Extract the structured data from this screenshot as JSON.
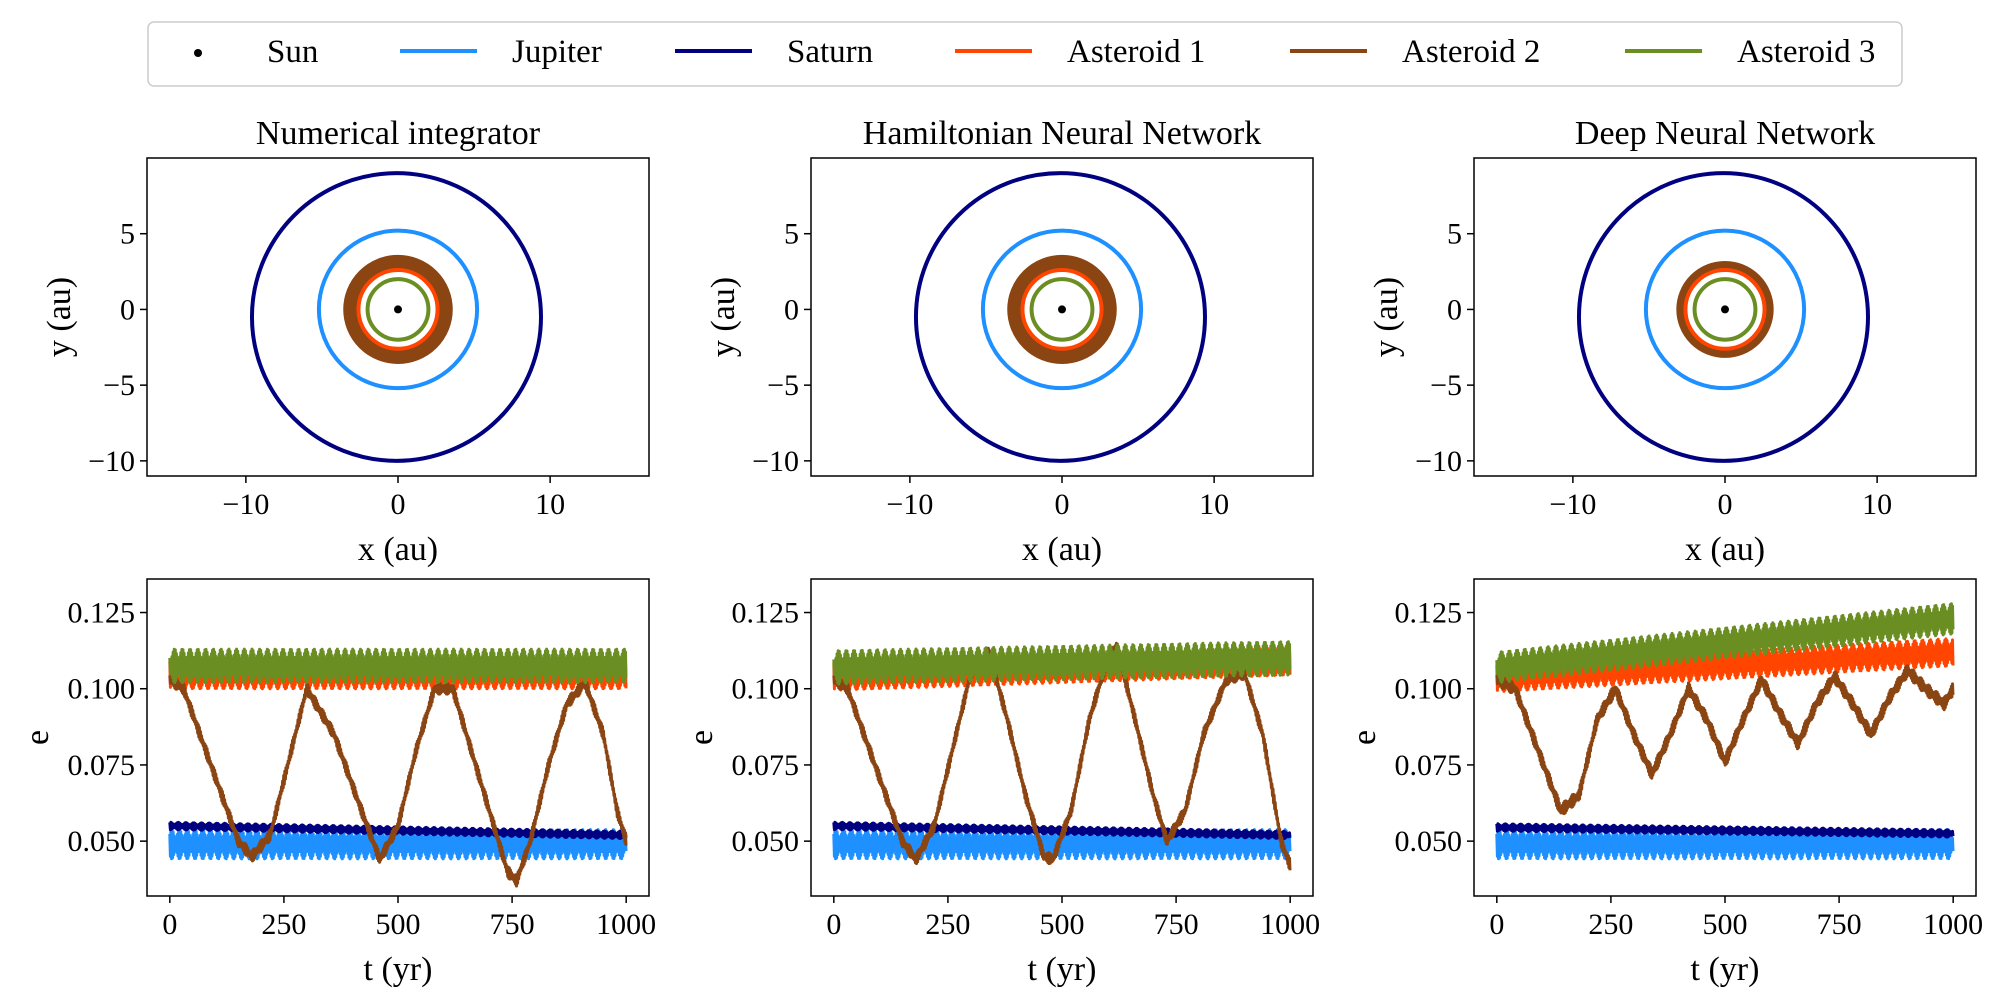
{
  "legend": {
    "placement": "top-center",
    "entries": [
      {
        "name": "Sun",
        "color": "#000000",
        "marker": "dot"
      },
      {
        "name": "Jupiter",
        "color": "#1e90ff",
        "marker": "line"
      },
      {
        "name": "Saturn",
        "color": "#000080",
        "marker": "line"
      },
      {
        "name": "Asteroid 1",
        "color": "#ff4500",
        "marker": "line"
      },
      {
        "name": "Asteroid 2",
        "color": "#8b4513",
        "marker": "line"
      },
      {
        "name": "Asteroid 3",
        "color": "#6b8e23",
        "marker": "line"
      }
    ]
  },
  "chart_data": [
    {
      "type": "line",
      "panel": "orbit",
      "title": "Numerical integrator",
      "xlabel": "x (au)",
      "ylabel": "y (au)",
      "xlim": [
        -16.5,
        16.5
      ],
      "ylim": [
        -11,
        10
      ],
      "xticks": [
        -10,
        0,
        10
      ],
      "yticks": [
        -10,
        -5,
        0,
        5
      ],
      "grid": false,
      "series": [
        {
          "name": "Saturn",
          "kind": "circle",
          "cx": -0.1,
          "cy": -0.5,
          "r": 9.5,
          "band": 0
        },
        {
          "name": "Jupiter",
          "kind": "circle",
          "cx": 0,
          "cy": 0,
          "r": 5.2,
          "band": 0
        },
        {
          "name": "Asteroid 2",
          "kind": "ring",
          "cx": 0,
          "cy": 0,
          "r_inner": 2.55,
          "r_outer": 3.6
        },
        {
          "name": "Asteroid 1",
          "kind": "circle",
          "cx": 0,
          "cy": 0,
          "r": 2.6,
          "band": 0
        },
        {
          "name": "Asteroid 3",
          "kind": "circle",
          "cx": 0,
          "cy": 0,
          "r": 2.0,
          "band": 0
        },
        {
          "name": "Sun",
          "kind": "point",
          "x": 0,
          "y": 0
        }
      ]
    },
    {
      "type": "line",
      "panel": "orbit",
      "title": "Hamiltonian Neural Network",
      "xlabel": "x (au)",
      "ylabel": "y (au)",
      "xlim": [
        -16.5,
        16.5
      ],
      "ylim": [
        -11,
        10
      ],
      "xticks": [
        -10,
        0,
        10
      ],
      "yticks": [
        -10,
        -5,
        0,
        5
      ],
      "grid": false,
      "series": [
        {
          "name": "Saturn",
          "kind": "circle",
          "cx": -0.1,
          "cy": -0.5,
          "r": 9.5,
          "band": 0
        },
        {
          "name": "Jupiter",
          "kind": "circle",
          "cx": 0,
          "cy": 0,
          "r": 5.2,
          "band": 0
        },
        {
          "name": "Asteroid 2",
          "kind": "ring",
          "cx": 0,
          "cy": 0,
          "r_inner": 2.55,
          "r_outer": 3.6
        },
        {
          "name": "Asteroid 1",
          "kind": "circle",
          "cx": 0,
          "cy": 0,
          "r": 2.6,
          "band": 0
        },
        {
          "name": "Asteroid 3",
          "kind": "circle",
          "cx": 0,
          "cy": 0,
          "r": 2.0,
          "band": 0
        },
        {
          "name": "Sun",
          "kind": "point",
          "x": 0,
          "y": 0
        }
      ]
    },
    {
      "type": "line",
      "panel": "orbit",
      "title": "Deep Neural Network",
      "xlabel": "x (au)",
      "ylabel": "y (au)",
      "xlim": [
        -16.5,
        16.5
      ],
      "ylim": [
        -11,
        10
      ],
      "xticks": [
        -10,
        0,
        10
      ],
      "yticks": [
        -10,
        -5,
        0,
        5
      ],
      "grid": false,
      "series": [
        {
          "name": "Saturn",
          "kind": "circle",
          "cx": -0.1,
          "cy": -0.5,
          "r": 9.5,
          "band": 0
        },
        {
          "name": "Jupiter",
          "kind": "circle",
          "cx": 0,
          "cy": 0,
          "r": 5.2,
          "band": 0
        },
        {
          "name": "Asteroid 2",
          "kind": "ring",
          "cx": 0,
          "cy": 0,
          "r_inner": 2.6,
          "r_outer": 3.2
        },
        {
          "name": "Asteroid 1",
          "kind": "circle",
          "cx": 0,
          "cy": 0,
          "r": 2.6,
          "band": 0
        },
        {
          "name": "Asteroid 3",
          "kind": "circle",
          "cx": 0,
          "cy": 0,
          "r": 2.0,
          "band": 0
        },
        {
          "name": "Sun",
          "kind": "point",
          "x": 0,
          "y": 0
        }
      ]
    },
    {
      "type": "line",
      "panel": "ecc",
      "title": "",
      "xlabel": "t (yr)",
      "ylabel": "e",
      "xlim": [
        -50,
        1050
      ],
      "ylim": [
        0.032,
        0.136
      ],
      "xticks": [
        0,
        250,
        500,
        750,
        1000
      ],
      "yticks": [
        0.05,
        0.075,
        0.1,
        0.125
      ],
      "grid": false,
      "series": [
        {
          "name": "Jupiter",
          "x": [
            0,
            1000
          ],
          "y": [
            0.049,
            0.049
          ],
          "amp": 0.0048
        },
        {
          "name": "Saturn",
          "x": [
            0,
            1000
          ],
          "y": [
            0.055,
            0.052
          ],
          "amp": 0.0012
        },
        {
          "name": "Asteroid 1",
          "x": [
            0,
            1000
          ],
          "y": [
            0.1045,
            0.1045
          ],
          "amp": 0.0045
        },
        {
          "name": "Asteroid 2",
          "x": [
            0,
            30,
            90,
            150,
            180,
            220,
            260,
            300,
            360,
            420,
            460,
            500,
            540,
            580,
            620,
            680,
            740,
            760,
            790,
            830,
            870,
            910,
            950,
            980,
            1000
          ],
          "y": [
            0.103,
            0.1,
            0.075,
            0.05,
            0.045,
            0.052,
            0.076,
            0.1,
            0.085,
            0.06,
            0.044,
            0.055,
            0.08,
            0.1,
            0.1,
            0.07,
            0.04,
            0.037,
            0.05,
            0.075,
            0.095,
            0.102,
            0.085,
            0.06,
            0.05
          ],
          "amp": 0.0018
        },
        {
          "name": "Asteroid 3",
          "x": [
            0,
            1000
          ],
          "y": [
            0.1075,
            0.1075
          ],
          "amp": 0.0055
        }
      ]
    },
    {
      "type": "line",
      "panel": "ecc",
      "title": "",
      "xlabel": "t (yr)",
      "ylabel": "e",
      "xlim": [
        -50,
        1050
      ],
      "ylim": [
        0.032,
        0.136
      ],
      "xticks": [
        0,
        250,
        500,
        750,
        1000
      ],
      "yticks": [
        0.05,
        0.075,
        0.1,
        0.125
      ],
      "grid": false,
      "series": [
        {
          "name": "Jupiter",
          "x": [
            0,
            1000
          ],
          "y": [
            0.049,
            0.049
          ],
          "amp": 0.0048
        },
        {
          "name": "Saturn",
          "x": [
            0,
            1000
          ],
          "y": [
            0.055,
            0.052
          ],
          "amp": 0.0012
        },
        {
          "name": "Asteroid 1",
          "x": [
            0,
            1000
          ],
          "y": [
            0.104,
            0.109
          ],
          "amp": 0.0045
        },
        {
          "name": "Asteroid 2",
          "x": [
            0,
            30,
            90,
            150,
            180,
            220,
            260,
            300,
            340,
            380,
            420,
            460,
            480,
            520,
            560,
            600,
            620,
            660,
            700,
            730,
            770,
            810,
            860,
            900,
            940,
            980,
            1000
          ],
          "y": [
            0.103,
            0.1,
            0.075,
            0.05,
            0.044,
            0.055,
            0.08,
            0.105,
            0.112,
            0.09,
            0.065,
            0.045,
            0.044,
            0.06,
            0.09,
            0.11,
            0.114,
            0.09,
            0.065,
            0.05,
            0.06,
            0.085,
            0.103,
            0.105,
            0.085,
            0.05,
            0.042
          ],
          "amp": 0.0018
        },
        {
          "name": "Asteroid 3",
          "x": [
            0,
            1000
          ],
          "y": [
            0.107,
            0.11
          ],
          "amp": 0.0055
        }
      ]
    },
    {
      "type": "line",
      "panel": "ecc",
      "title": "",
      "xlabel": "t (yr)",
      "ylabel": "e",
      "xlim": [
        -50,
        1050
      ],
      "ylim": [
        0.032,
        0.136
      ],
      "xticks": [
        0,
        250,
        500,
        750,
        1000
      ],
      "yticks": [
        0.05,
        0.075,
        0.1,
        0.125
      ],
      "grid": false,
      "series": [
        {
          "name": "Jupiter",
          "x": [
            0,
            1000
          ],
          "y": [
            0.049,
            0.049
          ],
          "amp": 0.0048
        },
        {
          "name": "Saturn",
          "x": [
            0,
            1000
          ],
          "y": [
            0.0545,
            0.0525
          ],
          "amp": 0.0012
        },
        {
          "name": "Asteroid 1",
          "x": [
            0,
            1000
          ],
          "y": [
            0.1035,
            0.112
          ],
          "amp": 0.0045
        },
        {
          "name": "Asteroid 2",
          "x": [
            0,
            40,
            90,
            140,
            180,
            220,
            260,
            300,
            340,
            380,
            420,
            460,
            500,
            540,
            580,
            620,
            660,
            700,
            740,
            780,
            820,
            860,
            900,
            940,
            980,
            1000
          ],
          "y": [
            0.103,
            0.1,
            0.08,
            0.06,
            0.065,
            0.09,
            0.1,
            0.085,
            0.072,
            0.085,
            0.1,
            0.09,
            0.076,
            0.09,
            0.103,
            0.092,
            0.082,
            0.095,
            0.104,
            0.095,
            0.085,
            0.097,
            0.106,
            0.1,
            0.095,
            0.1
          ],
          "amp": 0.002
        },
        {
          "name": "Asteroid 3",
          "x": [
            0,
            1000
          ],
          "y": [
            0.107,
            0.123
          ],
          "amp": 0.005
        }
      ]
    }
  ]
}
